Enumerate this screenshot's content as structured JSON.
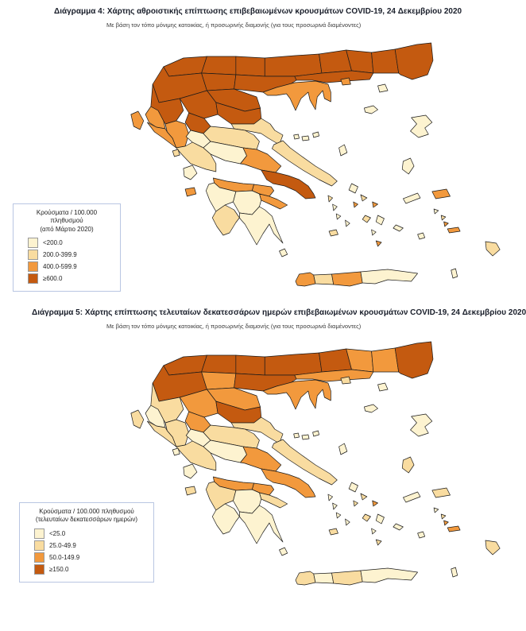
{
  "colors": {
    "c1": "#FDF3D0",
    "c2": "#F9DCA0",
    "c3": "#F2993D",
    "c4": "#C45A10",
    "border": "#1a1a1a",
    "title_text": "#1a1f2b",
    "legend_border": "#b9c6e2"
  },
  "maps": {
    "map1": {
      "title": "Διάγραμμα 4: Χάρτης αθροιστικής επίπτωσης επιβεβαιωμένων κρουσμάτων COVID-19, 24 Δεκεμβρίου 2020",
      "subtitle": "Με βάση τον τόπο μόνιμης κατοικίας, ή προσωρινής διαμονής (για τους προσωρινά διαμένοντες)",
      "legend": {
        "title_line1": "Κρούσματα / 100.000 πληθυσμού",
        "title_line2": "(από Μάρτιο 2020)",
        "items": [
          {
            "label": "<200.0",
            "color": "c1"
          },
          {
            "label": "200.0-399.9",
            "color": "c2"
          },
          {
            "label": "400.0-599.9",
            "color": "c3"
          },
          {
            "label": "≥600.0",
            "color": "c4"
          }
        ]
      },
      "regions": {
        "florina": "c4",
        "pella": "c4",
        "kilkis": "c4",
        "serres": "c4",
        "drama": "c4",
        "xanthi": "c4",
        "rodopi": "c4",
        "evros": "c4",
        "kozani": "c4",
        "imathia": "c4",
        "thessaloniki": "c4",
        "kavala": "c4",
        "chalkidiki": "c3",
        "pieria": "c4",
        "thesprotia": "c3",
        "ioannina": "c4",
        "arta": "c3",
        "preveza": "c3",
        "trikala": "c4",
        "larissa": "c4",
        "karditsa": "c4",
        "magnesia": "c2",
        "evrytania": "c1",
        "phthiotis": "c2",
        "phocis": "c1",
        "aetolia": "c2",
        "boeotia": "c3",
        "attica": "c4",
        "achaia": "c3",
        "corinthia": "c3",
        "argolis": "c3",
        "arcadia": "c1",
        "elis": "c1",
        "messenia": "c2",
        "laconia": "c1",
        "evia": "c2",
        "corfu": "c3",
        "lefkada": "c2",
        "kefalonia": "c1",
        "zakynthos": "c3",
        "kythira": "c1",
        "chania": "c3",
        "rethymno": "c2",
        "heraklion": "c3",
        "lasithi": "c1",
        "thasos": "c3",
        "samothraki": "c1",
        "limnos": "c1",
        "lesvos": "c1",
        "chios": "c1",
        "samos": "c3",
        "ikaria": "c1",
        "skiathos": "c1",
        "skopelos": "c1",
        "alonnisos": "c1",
        "skyros": "c1",
        "andros": "c1",
        "tinos": "c2",
        "mykonos": "c3",
        "syros": "c3",
        "kea": "c2",
        "kythnos": "c1",
        "serifos": "c1",
        "sifnos": "c1",
        "milos": "c2",
        "paros": "c2",
        "naxos": "c1",
        "ios": "c1",
        "santorini": "c3",
        "amorgos": "c1",
        "astypalaia": "c1",
        "patmos": "c1",
        "leros": "c2",
        "kalymnos": "c3",
        "kos": "c3",
        "rodos": "c2",
        "karpathos": "c1"
      }
    },
    "map2": {
      "title": "Διάγραμμα 5: Χάρτης επίπτωσης τελευταίων δεκατεσσάρων ημερών επιβεβαιωμένων κρουσμάτων COVID-19, 24 Δεκεμβρίου 2020",
      "subtitle": "Με βάση τον τόπο μόνιμης κατοικίας, ή προσωρινής διαμονής (για τους προσωρινά διαμένοντες)",
      "legend": {
        "title_line1": "Κρούσματα / 100.000 πληθυσμού",
        "title_line2": "(τελευταίων δεκατεσσάρων ημερών)",
        "items": [
          {
            "label": "<25.0",
            "color": "c1"
          },
          {
            "label": "25.0-49.9",
            "color": "c2"
          },
          {
            "label": "50.0-149.9",
            "color": "c3"
          },
          {
            "label": "≥150.0",
            "color": "c4"
          }
        ]
      },
      "regions": {
        "florina": "c4",
        "pella": "c4",
        "kilkis": "c4",
        "serres": "c4",
        "drama": "c4",
        "xanthi": "c3",
        "rodopi": "c3",
        "evros": "c4",
        "kozani": "c4",
        "imathia": "c3",
        "thessaloniki": "c4",
        "kavala": "c3",
        "chalkidiki": "c3",
        "pieria": "c3",
        "thesprotia": "c1",
        "ioannina": "c2",
        "arta": "c2",
        "preveza": "c2",
        "trikala": "c3",
        "larissa": "c4",
        "karditsa": "c3",
        "magnesia": "c2",
        "evrytania": "c1",
        "phthiotis": "c2",
        "phocis": "c1",
        "aetolia": "c2",
        "boeotia": "c3",
        "attica": "c3",
        "achaia": "c3",
        "corinthia": "c3",
        "argolis": "c2",
        "arcadia": "c1",
        "elis": "c2",
        "messenia": "c1",
        "laconia": "c1",
        "evia": "c2",
        "corfu": "c2",
        "lefkada": "c1",
        "kefalonia": "c1",
        "zakynthos": "c2",
        "kythira": "c1",
        "chania": "c2",
        "rethymno": "c1",
        "heraklion": "c2",
        "lasithi": "c1",
        "thasos": "c2",
        "samothraki": "c1",
        "limnos": "c1",
        "lesvos": "c1",
        "chios": "c2",
        "samos": "c2",
        "ikaria": "c1",
        "skiathos": "c1",
        "skopelos": "c1",
        "alonnisos": "c1",
        "skyros": "c1",
        "andros": "c1",
        "tinos": "c2",
        "mykonos": "c3",
        "syros": "c2",
        "kea": "c1",
        "kythnos": "c1",
        "serifos": "c1",
        "sifnos": "c1",
        "milos": "c2",
        "paros": "c2",
        "naxos": "c1",
        "ios": "c1",
        "santorini": "c2",
        "amorgos": "c1",
        "astypalaia": "c1",
        "patmos": "c1",
        "leros": "c2",
        "kalymnos": "c3",
        "kos": "c3",
        "rodos": "c2",
        "karpathos": "c1"
      }
    }
  }
}
